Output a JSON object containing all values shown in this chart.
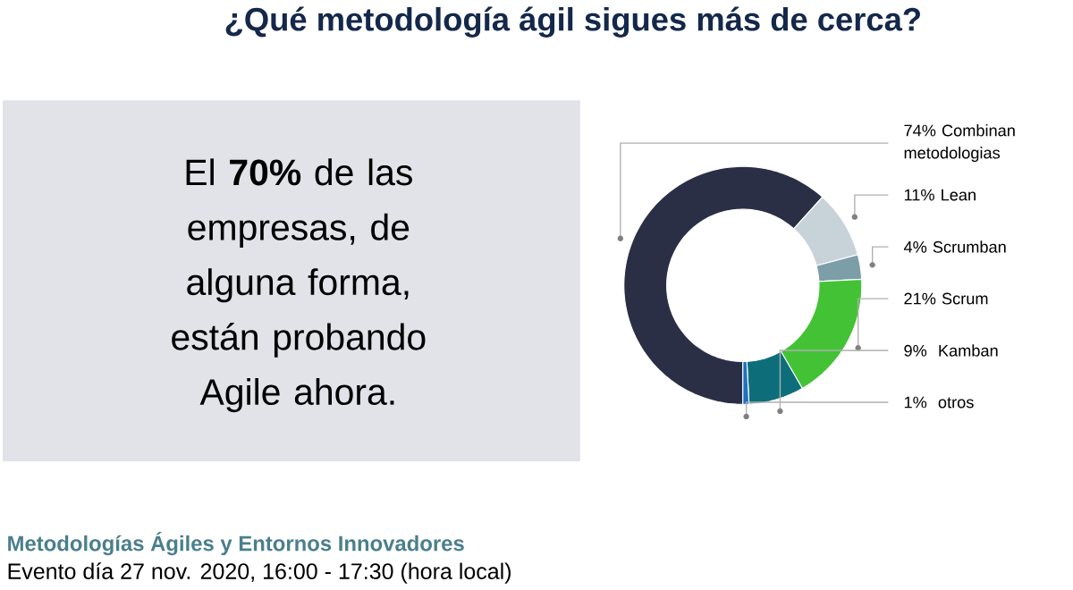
{
  "chart_data": {
    "type": "donut",
    "title": "¿Qué metodología ágil sigues más de cerca?",
    "categories": [
      "Combinan metodologias",
      "Lean",
      "Scrumban",
      "Scrum",
      "Kamban",
      "otros"
    ],
    "values": [
      74,
      11,
      4,
      21,
      9,
      1
    ],
    "value_labels": [
      "74%",
      "11%",
      "4%",
      "21%",
      "9% ",
      "1% "
    ],
    "colors": [
      "#2b2f45",
      "#c8d3d9",
      "#7b9ea8",
      "#44c236",
      "#0d6e7a",
      "#1f6fbf"
    ],
    "annotations": [
      "El **70%** de las empresas, de alguna forma, están probando Agile ahora.",
      "Metodologías Ágiles y Entornos Innovadores",
      "Evento día 27 nov. 2020, 16:00 - 17:30 (hora local)"
    ]
  }
}
